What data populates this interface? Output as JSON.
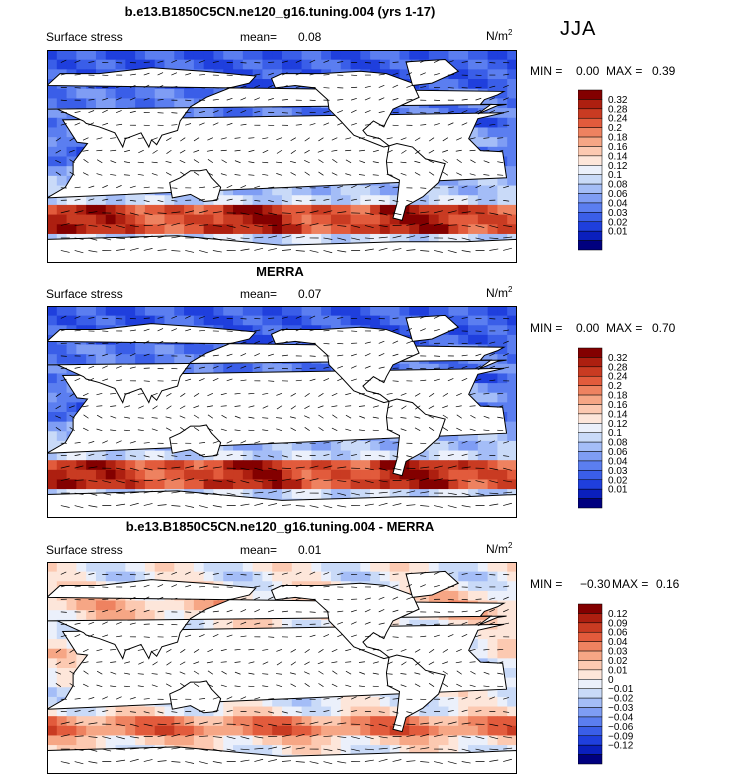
{
  "season": "JJA",
  "colors": {
    "positive_scale": [
      "#00007f",
      "#0a1fbd",
      "#1f3fdd",
      "#3a5ee8",
      "#5b7ef0",
      "#7f9df4",
      "#a4bdf7",
      "#c9daf8",
      "#ebf0fb",
      "#fde6da",
      "#fcc9b1",
      "#f6a685",
      "#ee8260",
      "#e25b3c",
      "#c93b22",
      "#ad1f10",
      "#830000"
    ],
    "diff_scale": [
      "#00007f",
      "#0a1fbd",
      "#1f3fdd",
      "#3a5ee8",
      "#5b7ef0",
      "#7f9df4",
      "#a4bdf7",
      "#c9daf8",
      "#ebf0fb",
      "#fde6da",
      "#fcc9b1",
      "#f6a685",
      "#ee8260",
      "#e25b3c",
      "#c93b22",
      "#ad1f10",
      "#830000"
    ]
  },
  "panels": [
    {
      "title": "b.e13.B1850C5CN.ne120_g16.tuning.004 (yrs 1-17)",
      "variable": "Surface stress",
      "mean_label": "mean=",
      "mean_value": "0.08",
      "units": "N/m",
      "units_exp": "2",
      "min_label": "MIN =",
      "min_value": "0.00",
      "max_label": "MAX =",
      "max_value": "0.39",
      "legend_labels": [
        "0.32",
        "0.28",
        "0.24",
        "0.2",
        "0.18",
        "0.16",
        "0.14",
        "0.12",
        "0.1",
        "0.08",
        "0.06",
        "0.04",
        "0.03",
        "0.02",
        "0.01"
      ]
    },
    {
      "title": "MERRA",
      "variable": "Surface stress",
      "mean_label": "mean=",
      "mean_value": "0.07",
      "units": "N/m",
      "units_exp": "2",
      "min_label": "MIN =",
      "min_value": "0.00",
      "max_label": "MAX =",
      "max_value": "0.70",
      "legend_labels": [
        "0.32",
        "0.28",
        "0.24",
        "0.2",
        "0.18",
        "0.16",
        "0.14",
        "0.12",
        "0.1",
        "0.08",
        "0.06",
        "0.04",
        "0.03",
        "0.02",
        "0.01"
      ]
    },
    {
      "title": "b.e13.B1850C5CN.ne120_g16.tuning.004 - MERRA",
      "variable": "Surface stress",
      "mean_label": "mean=",
      "mean_value": "0.01",
      "units": "N/m",
      "units_exp": "2",
      "min_label": "MIN =",
      "min_value": "−0.30",
      "max_label": "MAX =",
      "max_value": "0.16",
      "legend_labels": [
        "0.12",
        "0.09",
        "0.06",
        "0.04",
        "0.03",
        "0.02",
        "0.01",
        "0",
        "−0.01",
        "−0.02",
        "−0.03",
        "−0.04",
        "−0.06",
        "−0.09",
        "−0.12"
      ]
    }
  ],
  "chart_data": [
    {
      "type": "heatmap",
      "title": "b.e13.B1850C5CN.ne120_g16.tuning.004 (yrs 1-17)",
      "variable": "Surface stress",
      "units": "N/m2",
      "mean": 0.08,
      "min": 0.0,
      "max": 0.39,
      "levels": [
        0.01,
        0.02,
        0.03,
        0.04,
        0.06,
        0.08,
        0.1,
        0.12,
        0.14,
        0.16,
        0.18,
        0.2,
        0.24,
        0.28,
        0.32
      ]
    },
    {
      "type": "heatmap",
      "title": "MERRA",
      "variable": "Surface stress",
      "units": "N/m2",
      "mean": 0.07,
      "min": 0.0,
      "max": 0.7,
      "levels": [
        0.01,
        0.02,
        0.03,
        0.04,
        0.06,
        0.08,
        0.1,
        0.12,
        0.14,
        0.16,
        0.18,
        0.2,
        0.24,
        0.28,
        0.32
      ]
    },
    {
      "type": "heatmap",
      "title": "b.e13.B1850C5CN.ne120_g16.tuning.004 - MERRA",
      "variable": "Surface stress",
      "units": "N/m2",
      "mean": 0.01,
      "min": -0.3,
      "max": 0.16,
      "levels": [
        -0.12,
        -0.09,
        -0.06,
        -0.04,
        -0.03,
        -0.02,
        -0.01,
        0,
        0.01,
        0.02,
        0.03,
        0.04,
        0.06,
        0.09,
        0.12
      ]
    }
  ]
}
